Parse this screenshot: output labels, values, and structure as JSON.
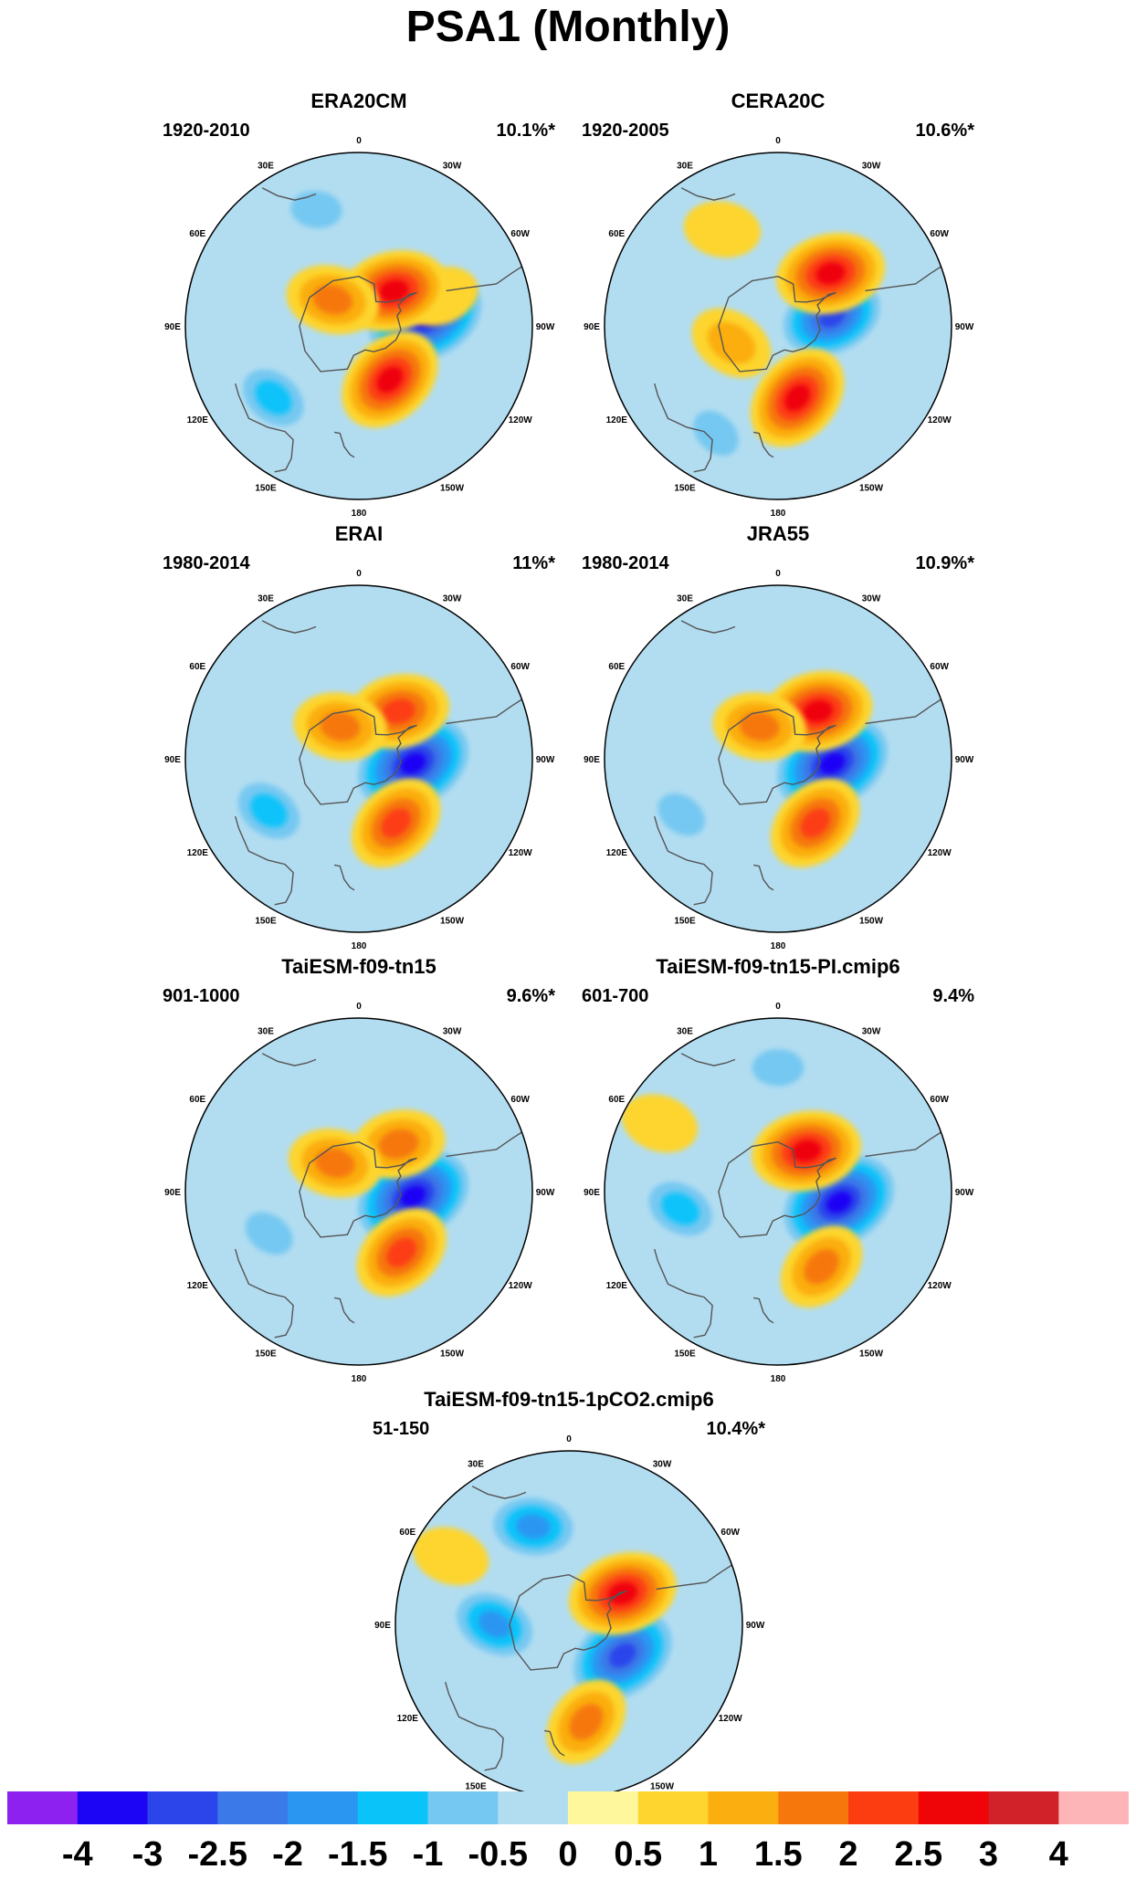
{
  "title": "PSA1 (Monthly)",
  "lon_labels": [
    "0",
    "30E",
    "60E",
    "90E",
    "120E",
    "150E",
    "180",
    "150W",
    "120W",
    "90W",
    "60W",
    "30W"
  ],
  "panels": [
    {
      "name": "ERA20CM",
      "period": "1920-2010",
      "variance": "10.1%*",
      "blobs": [
        {
          "lon": -82,
          "lat": -63,
          "v": -4
        },
        {
          "lon": -70,
          "lat": -55,
          "v": 0.5
        },
        {
          "lon": -45,
          "lat": -70,
          "v": 2.5
        },
        {
          "lon": -150,
          "lat": -65,
          "v": 2.5
        },
        {
          "lon": 130,
          "lat": -45,
          "v": -1.5
        },
        {
          "lon": 20,
          "lat": -40,
          "v": -1
        },
        {
          "lon": 45,
          "lat": -75,
          "v": 1.5
        }
      ]
    },
    {
      "name": "CERA20C",
      "period": "1920-2005",
      "variance": "10.6%*",
      "blobs": [
        {
          "lon": -80,
          "lat": -68,
          "v": -3
        },
        {
          "lon": -45,
          "lat": -60,
          "v": 2.5
        },
        {
          "lon": -165,
          "lat": -60,
          "v": 2.5
        },
        {
          "lon": 110,
          "lat": -70,
          "v": 1
        },
        {
          "lon": 30,
          "lat": -45,
          "v": 0.5
        },
        {
          "lon": 150,
          "lat": -40,
          "v": -1
        }
      ]
    },
    {
      "name": "ERAI",
      "period": "1980-2014",
      "variance": "11%*",
      "blobs": [
        {
          "lon": -95,
          "lat": -68,
          "v": -4
        },
        {
          "lon": -40,
          "lat": -65,
          "v": 2
        },
        {
          "lon": 30,
          "lat": -75,
          "v": 1.5
        },
        {
          "lon": -150,
          "lat": -60,
          "v": 2
        },
        {
          "lon": 120,
          "lat": -48,
          "v": -1.5
        },
        {
          "lon": 20,
          "lat": -40,
          "v": -0.5
        }
      ]
    },
    {
      "name": "JRA55",
      "period": "1980-2014",
      "variance": "10.9%*",
      "blobs": [
        {
          "lon": -95,
          "lat": -68,
          "v": -4
        },
        {
          "lon": -40,
          "lat": -65,
          "v": 2.5
        },
        {
          "lon": 30,
          "lat": -75,
          "v": 1.5
        },
        {
          "lon": -150,
          "lat": -60,
          "v": 2
        },
        {
          "lon": 120,
          "lat": -45,
          "v": -1
        },
        {
          "lon": 20,
          "lat": -40,
          "v": -0.5
        }
      ]
    },
    {
      "name": "TaiESM-f09-tn15",
      "period": "901-1000",
      "variance": "9.6%*",
      "blobs": [
        {
          "lon": -95,
          "lat": -68,
          "v": -4
        },
        {
          "lon": -40,
          "lat": -65,
          "v": 1.5
        },
        {
          "lon": 40,
          "lat": -75,
          "v": 1.5
        },
        {
          "lon": -145,
          "lat": -60,
          "v": 2
        },
        {
          "lon": 115,
          "lat": -50,
          "v": -1
        },
        {
          "lon": 20,
          "lat": -40,
          "v": -0.5
        }
      ]
    },
    {
      "name": "TaiESM-f09-tn15-PI.cmip6",
      "period": "601-700",
      "variance": "9.4%",
      "blobs": [
        {
          "lon": -100,
          "lat": -65,
          "v": -4
        },
        {
          "lon": -35,
          "lat": -70,
          "v": 2.5
        },
        {
          "lon": -150,
          "lat": -55,
          "v": 1.5
        },
        {
          "lon": 100,
          "lat": -50,
          "v": -1.5
        },
        {
          "lon": 0,
          "lat": -40,
          "v": -1
        },
        {
          "lon": 60,
          "lat": -35,
          "v": 0.5
        }
      ]
    },
    {
      "name": "TaiESM-f09-tn15-1pCO2.cmip6",
      "period": "51-150",
      "variance": "10.4%*",
      "blobs": [
        {
          "lon": -120,
          "lat": -65,
          "v": -3.5
        },
        {
          "lon": -60,
          "lat": -65,
          "v": 2.5
        },
        {
          "lon": 20,
          "lat": -48,
          "v": -2
        },
        {
          "lon": 90,
          "lat": -60,
          "v": -2
        },
        {
          "lon": -170,
          "lat": -50,
          "v": 1.5
        },
        {
          "lon": 60,
          "lat": -35,
          "v": 0.5
        }
      ]
    }
  ],
  "colorbar": {
    "colors": [
      "#8c21f0",
      "#1c05f5",
      "#2c45eb",
      "#3b79e8",
      "#2b96f2",
      "#0ac3f9",
      "#74c8f1",
      "#b2ddf1",
      "#fef79c",
      "#fdd52e",
      "#fbae0f",
      "#f6780d",
      "#fc3d12",
      "#ef0408",
      "#d02228",
      "#fdb5b7"
    ],
    "levels": [
      "-4",
      "-3",
      "-2.5",
      "-2",
      "-1.5",
      "-1",
      "-0.5",
      "0",
      "0.5",
      "1",
      "1.5",
      "2",
      "2.5",
      "3",
      "4"
    ]
  }
}
